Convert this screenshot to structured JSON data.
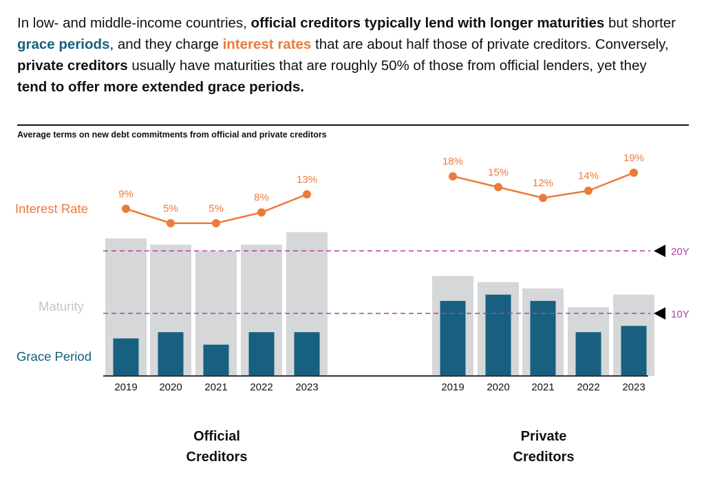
{
  "intro": [
    {
      "text": "In low- and middle-income countries, ",
      "style": "normal"
    },
    {
      "text": "official creditors typically lend with longer maturities",
      "style": "bold"
    },
    {
      "text": " but shorter ",
      "style": "normal"
    },
    {
      "text": "grace periods",
      "style": "teal"
    },
    {
      "text": ", and they charge ",
      "style": "normal"
    },
    {
      "text": "interest rates",
      "style": "orange"
    },
    {
      "text": " that are about half those of private creditors. Conversely, ",
      "style": "normal"
    },
    {
      "text": "private creditors",
      "style": "bold"
    },
    {
      "text": " usually have maturities that are roughly 50% of those from official lenders, yet they ",
      "style": "normal"
    },
    {
      "text": "tend to offer more extended grace periods.",
      "style": "bold"
    }
  ],
  "colors": {
    "interest": "#ec7a3a",
    "maturity": "#d6d7d9",
    "grace": "#17607f",
    "reference": "#b23ea8",
    "text": "#111111"
  },
  "chart_data": {
    "type": "bar",
    "title": "Average terms on new debt commitments from official and private creditors",
    "series_labels": {
      "interest": "Interest Rate",
      "maturity": "Maturity",
      "grace": "Grace Period"
    },
    "reference_lines": [
      {
        "value": 20,
        "label": "20Y"
      },
      {
        "value": 10,
        "label": "10Y"
      }
    ],
    "groups": [
      {
        "name": "Official Creditors",
        "name_lines": [
          "Official",
          "Creditors"
        ],
        "categories": [
          "2019",
          "2020",
          "2021",
          "2022",
          "2023"
        ],
        "maturity_years": [
          22,
          21,
          20,
          21,
          23
        ],
        "grace_years": [
          6,
          7,
          5,
          7,
          7
        ],
        "interest_rate_pct": [
          9,
          5,
          5,
          8,
          13
        ],
        "interest_labels": [
          "9%",
          "5%",
          "5%",
          "8%",
          "13%"
        ]
      },
      {
        "name": "Private Creditors",
        "name_lines": [
          "Private",
          "Creditors"
        ],
        "categories": [
          "2019",
          "2020",
          "2021",
          "2022",
          "2023"
        ],
        "maturity_years": [
          16,
          15,
          14,
          11,
          13
        ],
        "grace_years": [
          12,
          13,
          12,
          7,
          8
        ],
        "interest_rate_pct": [
          18,
          15,
          12,
          14,
          19
        ],
        "interest_labels": [
          "18%",
          "15%",
          "12%",
          "14%",
          "19%"
        ]
      }
    ]
  }
}
